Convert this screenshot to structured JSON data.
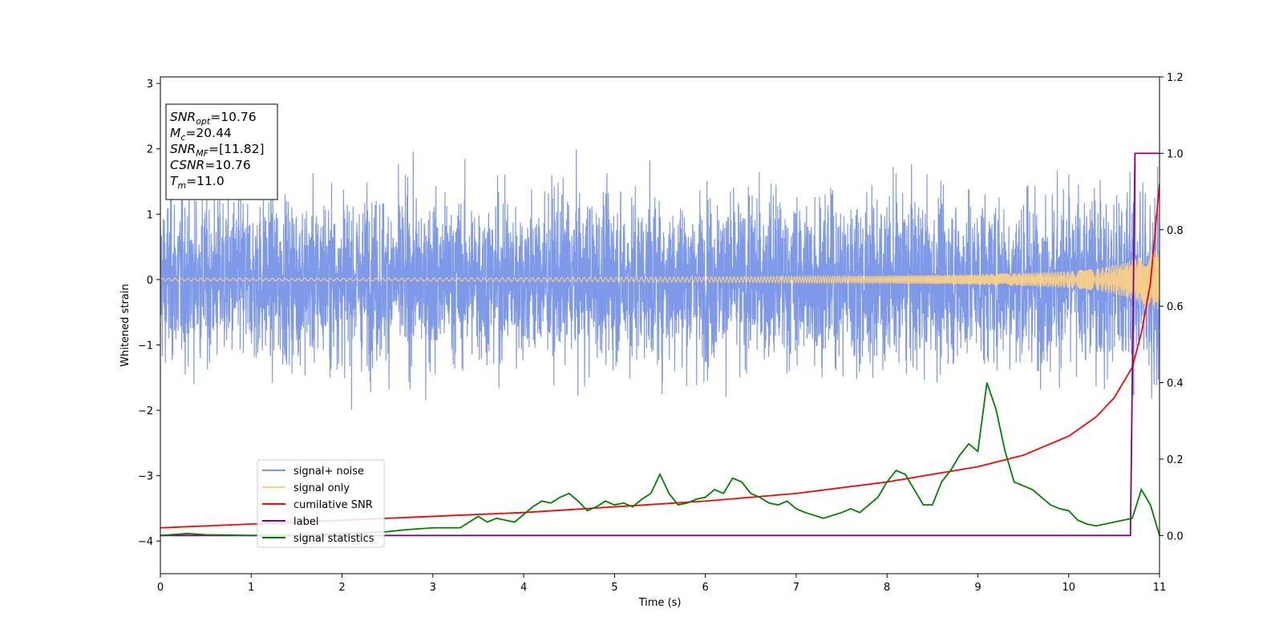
{
  "chart_data": {
    "type": "line",
    "xlabel": "Time (s)",
    "ylabel": "Whitened strain",
    "xlim": [
      0,
      11
    ],
    "ylim": [
      -4.5,
      3.1
    ],
    "y2lim": [
      -0.1,
      1.2
    ],
    "grid": false,
    "x_ticks": [
      "0",
      "1",
      "2",
      "3",
      "4",
      "5",
      "6",
      "7",
      "8",
      "9",
      "10",
      "11"
    ],
    "y_ticks": [
      "−4",
      "−3",
      "−2",
      "−1",
      "0",
      "1",
      "2",
      "3"
    ],
    "y2_ticks": [
      "0.0",
      "0.2",
      "0.4",
      "0.6",
      "0.8",
      "1.0",
      "1.2"
    ],
    "annotation": {
      "lines": [
        {
          "var": "SNR",
          "sub": "opt",
          "value": "=10.76"
        },
        {
          "var": "M",
          "sub": "c",
          "value": "=20.44"
        },
        {
          "var": "SNR",
          "sub": "MF",
          "value": "=[11.82]"
        },
        {
          "var": "CSNR",
          "sub": "",
          "value": "=10.76"
        },
        {
          "var": "T",
          "sub": "m",
          "value": "=11.0"
        }
      ]
    },
    "legend": {
      "placement": "lower-left",
      "entries": [
        {
          "label": "signal+ noise",
          "color": "#7893e8"
        },
        {
          "label": "signal only",
          "color": "#ffd27f"
        },
        {
          "label": "cumilative SNR",
          "color": "#ff0000"
        },
        {
          "label": "label",
          "color": "#800080"
        },
        {
          "label": "signal statistics",
          "color": "#008000"
        }
      ]
    },
    "series": [
      {
        "name": "signal+ noise",
        "axis": "left",
        "color": "#7893e8",
        "note_noise_amplitude": 1.0
      },
      {
        "name": "signal only",
        "axis": "left",
        "color": "#ffd27f",
        "envelope_x": [
          0,
          2,
          4,
          6,
          7,
          8,
          9,
          9.5,
          10,
          10.3,
          10.5,
          10.7,
          10.85,
          11
        ],
        "envelope_y": [
          0.02,
          0.02,
          0.03,
          0.04,
          0.05,
          0.06,
          0.08,
          0.1,
          0.13,
          0.17,
          0.22,
          0.3,
          0.38,
          0.46
        ]
      },
      {
        "name": "cumilative SNR",
        "axis": "right",
        "color": "#ff0000",
        "x": [
          0,
          1,
          2,
          3,
          4,
          5,
          6,
          7,
          8,
          8.5,
          9,
          9.5,
          10,
          10.3,
          10.5,
          10.7,
          10.8,
          10.9,
          11
        ],
        "y": [
          0.02,
          0.03,
          0.04,
          0.05,
          0.06,
          0.075,
          0.09,
          0.11,
          0.14,
          0.16,
          0.18,
          0.21,
          0.26,
          0.31,
          0.36,
          0.44,
          0.53,
          0.66,
          0.92
        ]
      },
      {
        "name": "label",
        "axis": "right",
        "color": "#800080",
        "x": [
          0,
          10.68,
          10.73,
          11
        ],
        "y": [
          0,
          0,
          1,
          1
        ]
      },
      {
        "name": "signal statistics",
        "axis": "right",
        "color": "#008000",
        "x": [
          0,
          0.3,
          0.5,
          1,
          1.5,
          2,
          2.5,
          2.7,
          3,
          3.3,
          3.5,
          3.6,
          3.7,
          3.9,
          4.1,
          4.2,
          4.3,
          4.4,
          4.5,
          4.6,
          4.7,
          4.8,
          4.9,
          5.0,
          5.1,
          5.2,
          5.3,
          5.4,
          5.5,
          5.6,
          5.7,
          5.8,
          5.9,
          6.0,
          6.1,
          6.2,
          6.3,
          6.4,
          6.5,
          6.6,
          6.7,
          6.8,
          6.9,
          7.0,
          7.1,
          7.3,
          7.5,
          7.6,
          7.7,
          7.9,
          8.0,
          8.1,
          8.2,
          8.3,
          8.4,
          8.5,
          8.6,
          8.7,
          8.8,
          8.9,
          9.0,
          9.1,
          9.2,
          9.3,
          9.4,
          9.5,
          9.6,
          9.7,
          9.8,
          9.9,
          10.0,
          10.1,
          10.2,
          10.3,
          10.4,
          10.5,
          10.6,
          10.7,
          10.8,
          10.9,
          11.0
        ],
        "y": [
          0.0,
          0.005,
          0.002,
          0.0,
          0.0,
          0.005,
          0.01,
          0.015,
          0.02,
          0.02,
          0.05,
          0.035,
          0.045,
          0.035,
          0.075,
          0.09,
          0.085,
          0.1,
          0.11,
          0.09,
          0.065,
          0.075,
          0.09,
          0.08,
          0.085,
          0.075,
          0.095,
          0.11,
          0.16,
          0.11,
          0.08,
          0.085,
          0.095,
          0.1,
          0.12,
          0.11,
          0.15,
          0.14,
          0.11,
          0.1,
          0.085,
          0.08,
          0.09,
          0.07,
          0.06,
          0.045,
          0.06,
          0.07,
          0.06,
          0.1,
          0.14,
          0.17,
          0.16,
          0.12,
          0.08,
          0.08,
          0.14,
          0.17,
          0.21,
          0.24,
          0.22,
          0.4,
          0.33,
          0.22,
          0.14,
          0.13,
          0.12,
          0.1,
          0.08,
          0.07,
          0.065,
          0.04,
          0.03,
          0.025,
          0.03,
          0.035,
          0.04,
          0.045,
          0.12,
          0.08,
          0.0
        ]
      }
    ]
  }
}
